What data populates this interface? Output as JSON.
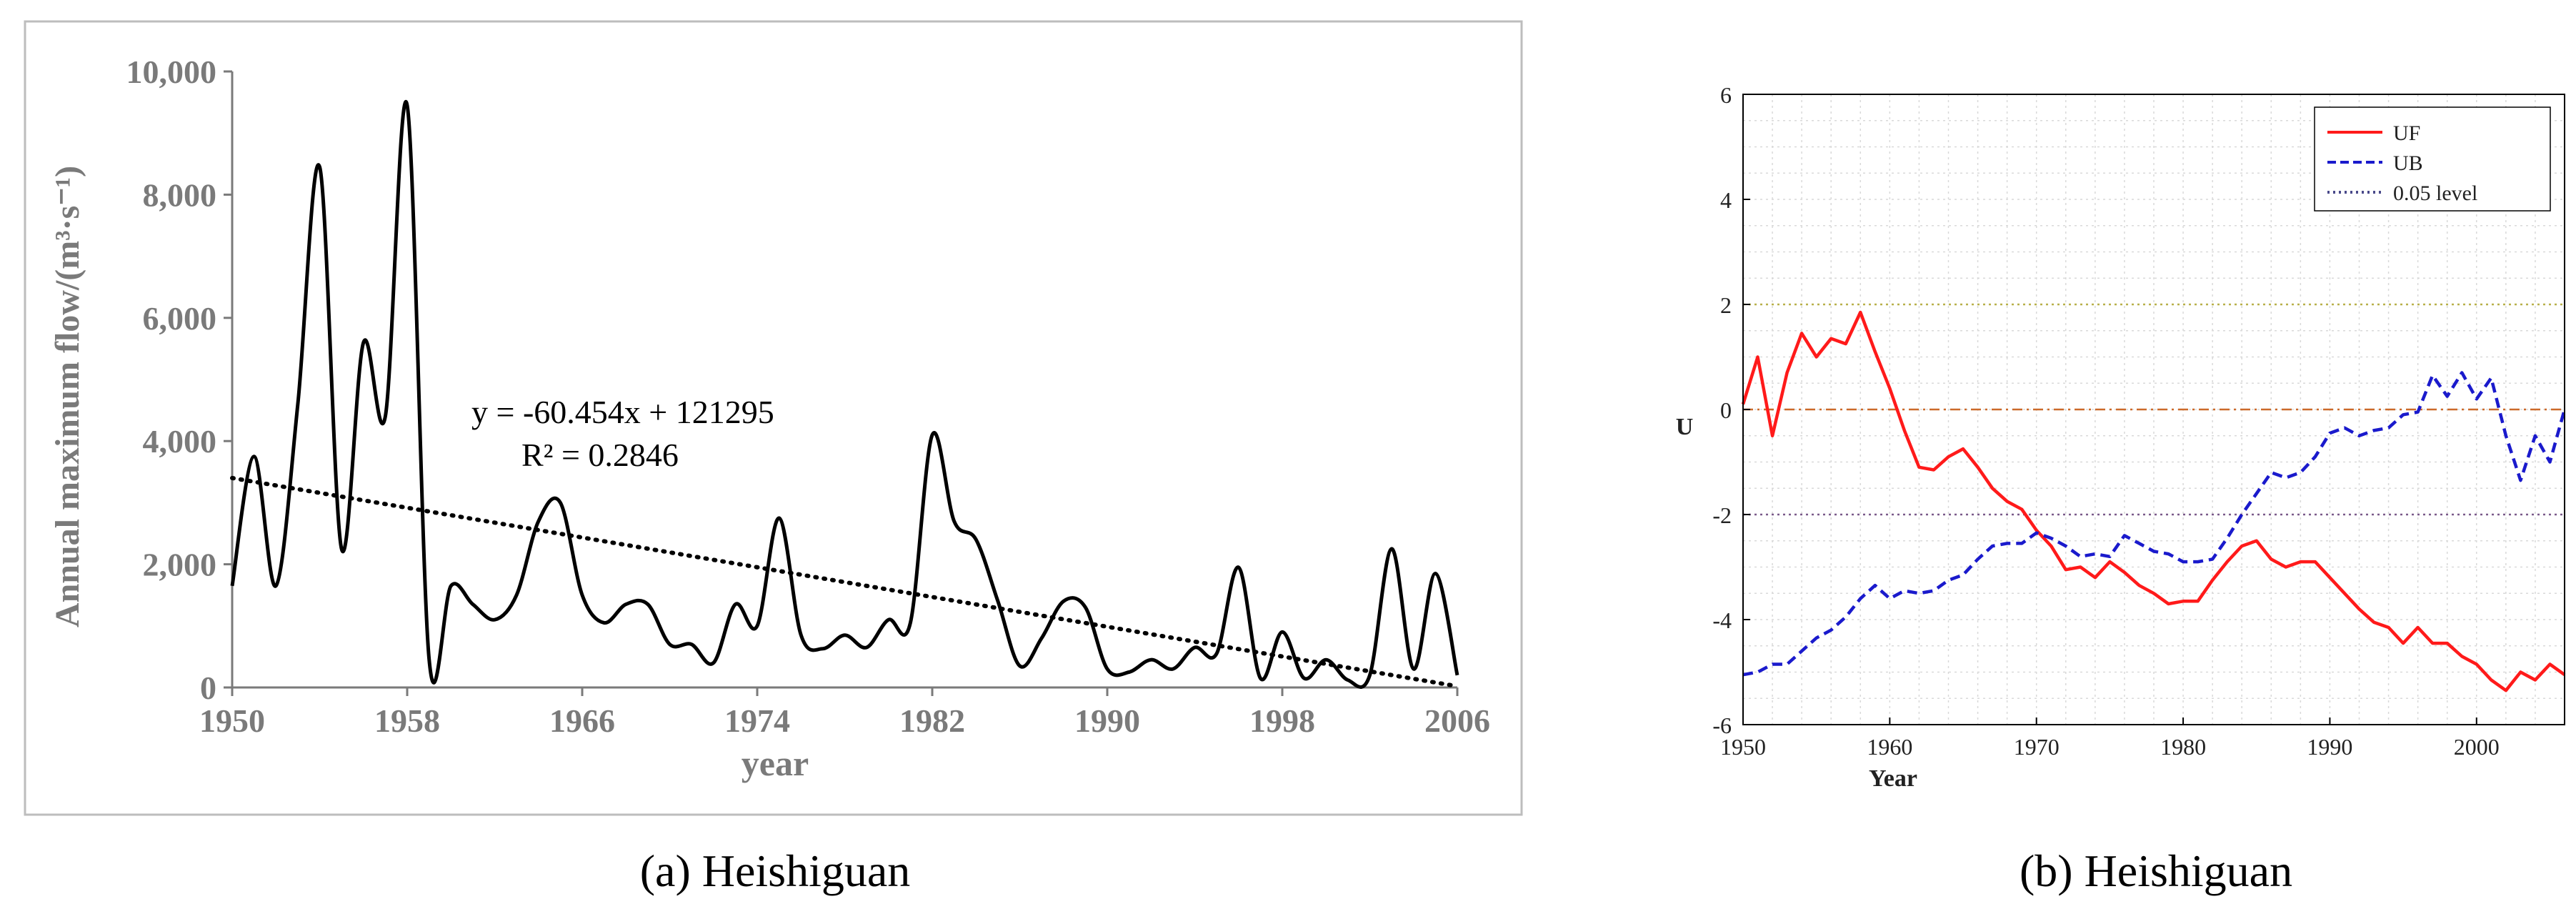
{
  "captions": [
    "(a) Heishiguan",
    "(b) Heishiguan"
  ],
  "chart_data": [
    {
      "type": "line",
      "caption": "(a) Heishiguan",
      "xlabel": "year",
      "ylabel": "Annual maximum flow/(m³·s⁻¹)",
      "xlim": [
        1950,
        2006
      ],
      "ylim": [
        0,
        10000
      ],
      "xticks": [
        1950,
        1958,
        1966,
        1974,
        1982,
        1990,
        1998,
        2006
      ],
      "xtick_labels": [
        "1950",
        "1958",
        "1966",
        "1974",
        "1982",
        "1990",
        "1998",
        "2006"
      ],
      "yticks": [
        0,
        2000,
        4000,
        6000,
        8000,
        10000
      ],
      "ytick_labels": [
        "0",
        "2,000",
        "4,000",
        "6,000",
        "8,000",
        "10,000"
      ],
      "grid": false,
      "series": [
        {
          "role": "observed",
          "color": "#000000",
          "points": [
            [
              1950,
              1650
            ],
            [
              1951,
              3750
            ],
            [
              1952,
              1650
            ],
            [
              1953,
              4600
            ],
            [
              1954,
              8450
            ],
            [
              1955,
              2250
            ],
            [
              1956,
              5600
            ],
            [
              1957,
              4400
            ],
            [
              1958,
              9450
            ],
            [
              1959,
              470
            ],
            [
              1960,
              1650
            ],
            [
              1961,
              1350
            ],
            [
              1962,
              1100
            ],
            [
              1963,
              1500
            ],
            [
              1964,
              2700
            ],
            [
              1965,
              3000
            ],
            [
              1966,
              1500
            ],
            [
              1967,
              1050
            ],
            [
              1968,
              1350
            ],
            [
              1969,
              1350
            ],
            [
              1970,
              700
            ],
            [
              1971,
              700
            ],
            [
              1972,
              400
            ],
            [
              1973,
              1350
            ],
            [
              1974,
              1000
            ],
            [
              1975,
              2750
            ],
            [
              1976,
              850
            ],
            [
              1977,
              630
            ],
            [
              1978,
              850
            ],
            [
              1979,
              650
            ],
            [
              1980,
              1100
            ],
            [
              1981,
              1050
            ],
            [
              1982,
              4100
            ],
            [
              1983,
              2700
            ],
            [
              1984,
              2400
            ],
            [
              1985,
              1400
            ],
            [
              1986,
              350
            ],
            [
              1987,
              800
            ],
            [
              1988,
              1400
            ],
            [
              1989,
              1300
            ],
            [
              1990,
              300
            ],
            [
              1991,
              250
            ],
            [
              1992,
              450
            ],
            [
              1993,
              300
            ],
            [
              1994,
              650
            ],
            [
              1995,
              550
            ],
            [
              1996,
              1950
            ],
            [
              1997,
              150
            ],
            [
              1998,
              900
            ],
            [
              1999,
              150
            ],
            [
              2000,
              450
            ],
            [
              2001,
              120
            ],
            [
              2002,
              200
            ],
            [
              2003,
              2250
            ],
            [
              2004,
              300
            ],
            [
              2005,
              1850
            ],
            [
              2006,
              200
            ]
          ]
        },
        {
          "role": "trend",
          "style": "dotted",
          "color": "#000000",
          "points": [
            [
              1950,
              3400
            ],
            [
              2006,
              20
            ]
          ]
        }
      ],
      "annotations": [
        "y = -60.454x + 121295",
        "R² = 0.2846"
      ]
    },
    {
      "type": "line",
      "caption": "(b) Heishiguan",
      "xlabel": "Year",
      "ylabel": "U",
      "xlim": [
        1950,
        2006
      ],
      "ylim": [
        -6,
        6
      ],
      "xticks": [
        1950,
        1960,
        1970,
        1980,
        1990,
        2000
      ],
      "xtick_labels": [
        "1950",
        "1960",
        "1970",
        "1980",
        "1990",
        "2000"
      ],
      "yticks": [
        -6,
        -4,
        -2,
        0,
        2,
        4,
        6
      ],
      "ytick_labels": [
        "-6",
        "-4",
        "-2",
        "0",
        "2",
        "4",
        "6"
      ],
      "grid": true,
      "legend": "top-right",
      "reference_lines": [
        {
          "y": 2,
          "color": "#b8b04a",
          "style": "dotted"
        },
        {
          "y": 0,
          "color": "#cc6a2a",
          "style": "dashdot"
        },
        {
          "y": -2,
          "color": "#7a5a8a",
          "style": "dotted"
        }
      ],
      "series": [
        {
          "name": "UF",
          "color": "#ff1a1a",
          "style": "solid",
          "points": [
            [
              1950,
              0.1
            ],
            [
              1951,
              1.0
            ],
            [
              1952,
              -0.5
            ],
            [
              1953,
              0.7
            ],
            [
              1954,
              1.45
            ],
            [
              1955,
              1.0
            ],
            [
              1956,
              1.35
            ],
            [
              1957,
              1.25
            ],
            [
              1958,
              1.85
            ],
            [
              1959,
              1.1
            ],
            [
              1960,
              0.4
            ],
            [
              1961,
              -0.4
            ],
            [
              1962,
              -1.1
            ],
            [
              1963,
              -1.15
            ],
            [
              1964,
              -0.9
            ],
            [
              1965,
              -0.75
            ],
            [
              1966,
              -1.1
            ],
            [
              1967,
              -1.5
            ],
            [
              1968,
              -1.75
            ],
            [
              1969,
              -1.9
            ],
            [
              1970,
              -2.3
            ],
            [
              1971,
              -2.6
            ],
            [
              1972,
              -3.05
            ],
            [
              1973,
              -3.0
            ],
            [
              1974,
              -3.2
            ],
            [
              1975,
              -2.9
            ],
            [
              1976,
              -3.1
            ],
            [
              1977,
              -3.35
            ],
            [
              1978,
              -3.5
            ],
            [
              1979,
              -3.7
            ],
            [
              1980,
              -3.65
            ],
            [
              1981,
              -3.65
            ],
            [
              1982,
              -3.25
            ],
            [
              1983,
              -2.9
            ],
            [
              1984,
              -2.6
            ],
            [
              1985,
              -2.5
            ],
            [
              1986,
              -2.85
            ],
            [
              1987,
              -3.0
            ],
            [
              1988,
              -2.9
            ],
            [
              1989,
              -2.9
            ],
            [
              1990,
              -3.2
            ],
            [
              1991,
              -3.5
            ],
            [
              1992,
              -3.8
            ],
            [
              1993,
              -4.05
            ],
            [
              1994,
              -4.15
            ],
            [
              1995,
              -4.45
            ],
            [
              1996,
              -4.15
            ],
            [
              1997,
              -4.45
            ],
            [
              1998,
              -4.45
            ],
            [
              1999,
              -4.7
            ],
            [
              2000,
              -4.85
            ],
            [
              2001,
              -5.15
            ],
            [
              2002,
              -5.35
            ],
            [
              2003,
              -5.0
            ],
            [
              2004,
              -5.15
            ],
            [
              2005,
              -4.85
            ],
            [
              2006,
              -5.05
            ]
          ]
        },
        {
          "name": "UB",
          "color": "#1a1acc",
          "style": "dashed",
          "points": [
            [
              1950,
              -5.05
            ],
            [
              1951,
              -5.0
            ],
            [
              1952,
              -4.85
            ],
            [
              1953,
              -4.85
            ],
            [
              1954,
              -4.6
            ],
            [
              1955,
              -4.35
            ],
            [
              1956,
              -4.2
            ],
            [
              1957,
              -3.95
            ],
            [
              1958,
              -3.6
            ],
            [
              1959,
              -3.35
            ],
            [
              1960,
              -3.6
            ],
            [
              1961,
              -3.45
            ],
            [
              1962,
              -3.5
            ],
            [
              1963,
              -3.45
            ],
            [
              1964,
              -3.25
            ],
            [
              1965,
              -3.15
            ],
            [
              1966,
              -2.85
            ],
            [
              1967,
              -2.6
            ],
            [
              1968,
              -2.55
            ],
            [
              1969,
              -2.55
            ],
            [
              1970,
              -2.35
            ],
            [
              1971,
              -2.45
            ],
            [
              1972,
              -2.6
            ],
            [
              1973,
              -2.8
            ],
            [
              1974,
              -2.75
            ],
            [
              1975,
              -2.8
            ],
            [
              1976,
              -2.4
            ],
            [
              1977,
              -2.55
            ],
            [
              1978,
              -2.7
            ],
            [
              1979,
              -2.75
            ],
            [
              1980,
              -2.9
            ],
            [
              1981,
              -2.9
            ],
            [
              1982,
              -2.85
            ],
            [
              1983,
              -2.45
            ],
            [
              1984,
              -2.0
            ],
            [
              1985,
              -1.6
            ],
            [
              1986,
              -1.2
            ],
            [
              1987,
              -1.3
            ],
            [
              1988,
              -1.2
            ],
            [
              1989,
              -0.9
            ],
            [
              1990,
              -0.45
            ],
            [
              1991,
              -0.35
            ],
            [
              1992,
              -0.5
            ],
            [
              1993,
              -0.4
            ],
            [
              1994,
              -0.35
            ],
            [
              1995,
              -0.1
            ],
            [
              1996,
              -0.05
            ],
            [
              1997,
              0.65
            ],
            [
              1998,
              0.25
            ],
            [
              1999,
              0.7
            ],
            [
              2000,
              0.2
            ],
            [
              2001,
              0.6
            ],
            [
              2002,
              -0.5
            ],
            [
              2003,
              -1.35
            ],
            [
              2004,
              -0.5
            ],
            [
              2005,
              -1.0
            ],
            [
              2006,
              0.0
            ]
          ]
        },
        {
          "name": "0.05 level",
          "color": "#4a4a8a",
          "style": "dotted",
          "points": []
        }
      ]
    }
  ]
}
